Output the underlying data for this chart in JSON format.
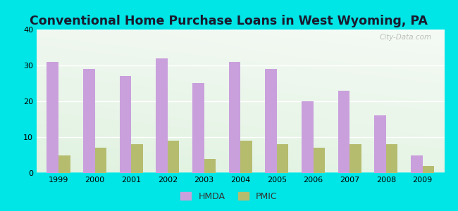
{
  "title": "Conventional Home Purchase Loans in West Wyoming, PA",
  "years": [
    1999,
    2000,
    2001,
    2002,
    2003,
    2004,
    2005,
    2006,
    2007,
    2008,
    2009
  ],
  "hmda": [
    31,
    29,
    27,
    32,
    25,
    31,
    29,
    20,
    23,
    16,
    5
  ],
  "pmic": [
    5,
    7,
    8,
    9,
    4,
    9,
    8,
    7,
    8,
    8,
    2
  ],
  "hmda_color": "#c9a0dc",
  "pmic_color": "#b5bc6e",
  "background_outer": "#00e5e5",
  "ylim": [
    0,
    40
  ],
  "yticks": [
    0,
    10,
    20,
    30,
    40
  ],
  "bar_width": 0.32,
  "title_fontsize": 12.5,
  "legend_labels": [
    "HMDA",
    "PMIC"
  ],
  "watermark": "City-Data.com"
}
